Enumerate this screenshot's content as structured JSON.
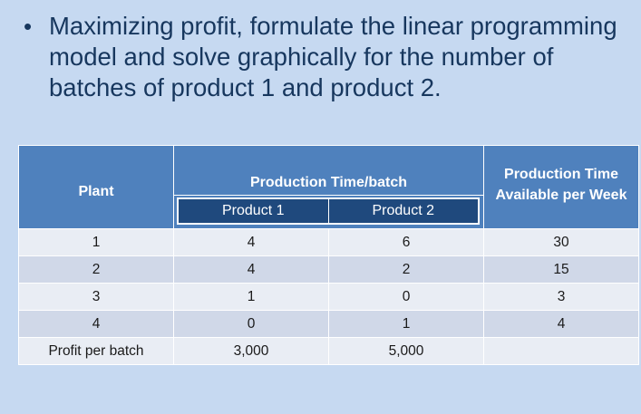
{
  "bullet": {
    "text": "Maximizing profit, formulate the linear programming model and solve graphically for the number of batches of product 1 and product 2."
  },
  "table": {
    "headers": {
      "plant": "Plant",
      "production_time": "Production Time/batch",
      "product1": "Product 1",
      "product2": "Product 2",
      "available": "Production Time Available per Week"
    },
    "rows": [
      {
        "plant": "1",
        "p1": "4",
        "p2": "6",
        "avail": "30"
      },
      {
        "plant": "2",
        "p1": "4",
        "p2": "2",
        "avail": "15"
      },
      {
        "plant": "3",
        "p1": "1",
        "p2": "0",
        "avail": "3"
      },
      {
        "plant": "4",
        "p1": "0",
        "p2": "1",
        "avail": "4"
      }
    ],
    "profit_row": {
      "label": "Profit per batch",
      "p1": "3,000",
      "p2": "5,000",
      "avail": ""
    }
  },
  "colors": {
    "background": "#c6d9f1",
    "header": "#4f81bd",
    "sub_header": "#1f497d",
    "row_light": "#e9edf4",
    "row_dark": "#d0d8e8",
    "text": "#17375e"
  }
}
